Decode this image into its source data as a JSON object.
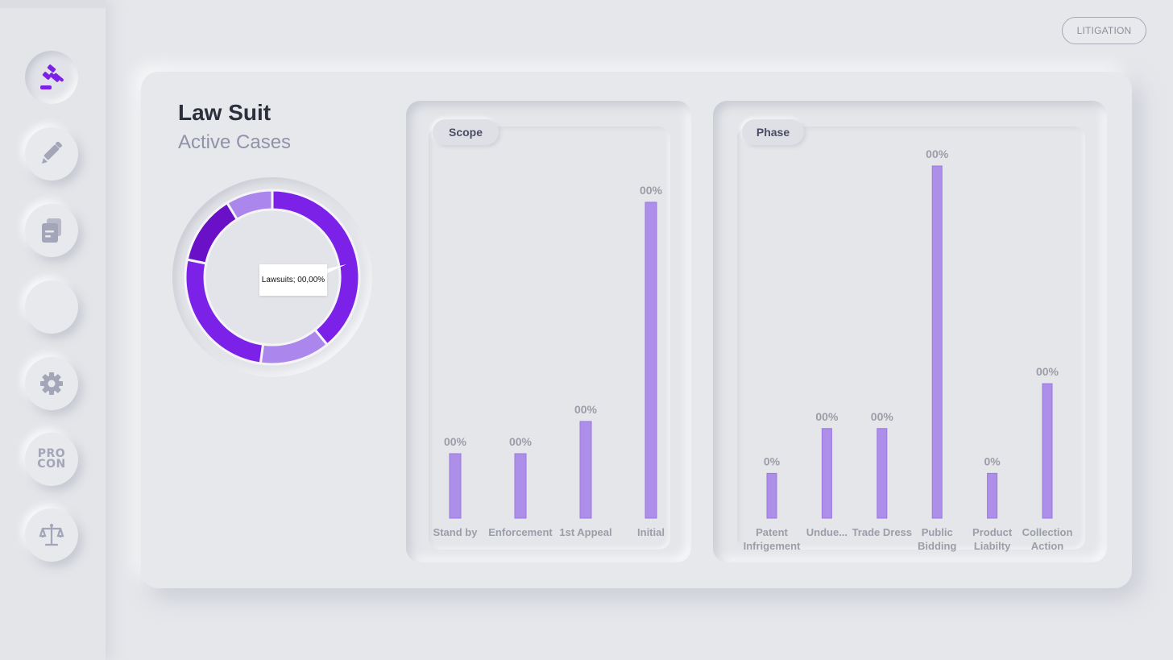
{
  "sidebar": {
    "items": [
      {
        "name": "gavel-icon",
        "active": true
      },
      {
        "name": "pencil-icon",
        "active": false
      },
      {
        "name": "documents-icon",
        "active": false
      },
      {
        "name": "blank",
        "active": false
      },
      {
        "name": "gear-icon",
        "active": false
      },
      {
        "name": "procon-icon",
        "label_top": "PRO",
        "label_bottom": "CON",
        "active": false
      },
      {
        "name": "scales-icon",
        "active": false
      }
    ]
  },
  "header": {
    "litigation_label": "LITIGATION"
  },
  "main": {
    "title": "Law Suit",
    "subtitle": "Active Cases",
    "tooltip": "Lawsuits; 00,00%"
  },
  "colors": {
    "accent": "#7c22e8",
    "accent_dark": "#6a10c6",
    "accent_light": "#ab86ec",
    "bar": "#ad8fe9",
    "bar_stroke": "#9a77e0",
    "label": "#9b9da8"
  },
  "chart_data": [
    {
      "type": "pie",
      "categories": [
        "",
        "",
        "",
        "",
        ""
      ],
      "values": [
        36,
        12,
        24,
        12,
        8
      ],
      "colors": [
        "#7c22e8",
        "#ab86ec",
        "#7c22e8",
        "#6a10c6",
        "#ab86ec"
      ],
      "title": "",
      "annotation": "Lawsuits; 00,00%"
    },
    {
      "type": "bar",
      "title": "Scope",
      "categories": [
        "Stand by",
        "Enforcement",
        "1st Appeal",
        "Initial"
      ],
      "values": [
        20,
        20,
        30,
        98
      ],
      "data_labels": [
        "00%",
        "00%",
        "00%",
        "00%"
      ],
      "ylim": [
        0,
        100
      ]
    },
    {
      "type": "bar",
      "title": "Phase",
      "categories": [
        "Patent Infrigement",
        "Undue...",
        "Trade Dress",
        "Public Bidding",
        "Product Liabilty",
        "Collection Action"
      ],
      "values": [
        14,
        28,
        28,
        110,
        14,
        42
      ],
      "data_labels": [
        "0%",
        "00%",
        "00%",
        "00%",
        "0%",
        "00%"
      ],
      "ylim": [
        0,
        110
      ]
    }
  ]
}
